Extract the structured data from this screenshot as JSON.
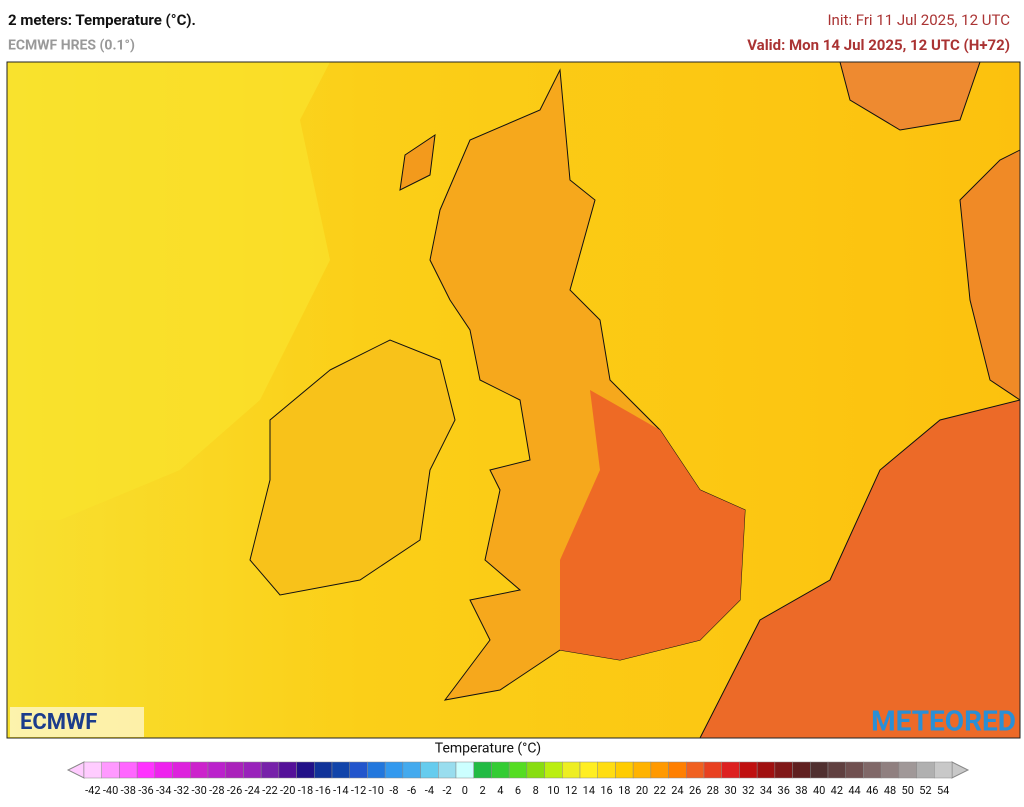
{
  "header": {
    "title": "2 meters: Temperature (°C).",
    "model": "ECMWF HRES (0.1°)",
    "init": "Init: Fri 11 Jul 2025, 12 UTC",
    "valid": "Valid: Mon 14 Jul 2025, 12 UTC (H+72)"
  },
  "map": {
    "logo_left": "ECMWF",
    "logo_right": "METEORED"
  },
  "legend": {
    "title": "Temperature (°C)",
    "labels": [
      -42,
      -40,
      -38,
      -36,
      -34,
      -32,
      -30,
      -28,
      -26,
      -24,
      -22,
      -20,
      -18,
      -16,
      -14,
      -12,
      -10,
      -8,
      -6,
      -4,
      -2,
      0,
      2,
      4,
      6,
      8,
      10,
      12,
      14,
      16,
      18,
      20,
      22,
      24,
      26,
      28,
      30,
      32,
      34,
      36,
      38,
      40,
      42,
      44,
      46,
      48,
      50,
      52,
      54
    ],
    "colors": [
      "#ffccff",
      "#ff99ff",
      "#ff66ff",
      "#ff33ff",
      "#ee22ee",
      "#dd22dd",
      "#cc22cc",
      "#bb22cc",
      "#aa22bb",
      "#9922bb",
      "#7722aa",
      "#551199",
      "#221188",
      "#113399",
      "#1144aa",
      "#2255cc",
      "#2277dd",
      "#3399ee",
      "#44aaee",
      "#66ccee",
      "#99ddee",
      "#ccffff",
      "#22bb44",
      "#33cc33",
      "#55dd22",
      "#88dd11",
      "#bbee11",
      "#eeee22",
      "#ffee22",
      "#ffdd11",
      "#ffcc00",
      "#ffb300",
      "#ff9900",
      "#ff7f00",
      "#f06020",
      "#e84020",
      "#dd2020",
      "#c01010",
      "#a01010",
      "#801818",
      "#602020",
      "#503030",
      "#604040",
      "#705050",
      "#806868",
      "#908080",
      "#a09898",
      "#b0b0b0",
      "#c8c8c8"
    ]
  }
}
